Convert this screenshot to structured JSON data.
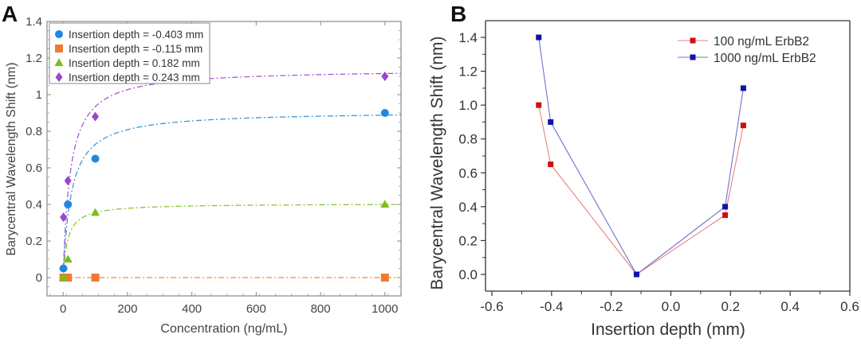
{
  "chart_data": [
    {
      "panel": "A",
      "type": "scatter",
      "title": "",
      "xlabel": "Concentration (ng/mL)",
      "ylabel": "Barycentral Wavelength Shift (nm)",
      "xlim": [
        -50,
        1050
      ],
      "ylim": [
        -0.1,
        1.4
      ],
      "xticks": [
        0,
        200,
        400,
        600,
        800,
        1000
      ],
      "xtick_labels": [
        "0",
        "200",
        "400",
        "600",
        "800",
        "1000"
      ],
      "yticks": [
        0,
        0.2,
        0.4,
        0.6,
        0.8,
        1,
        1.2,
        1.4
      ],
      "ytick_labels": [
        "0",
        "0.2",
        "0.4",
        "0.6",
        "0.8",
        "1",
        "1.2",
        "1.4"
      ],
      "grid": false,
      "legend_position": "top-left",
      "fit_lines": "dash-dot",
      "series": [
        {
          "name": "Insertion depth = -0.403 mm",
          "marker": "circle",
          "color": "#1f88e0",
          "fit_color": "#3a9ad6",
          "x": [
            1,
            10,
            100,
            1000
          ],
          "y": [
            0.05,
            0.4,
            0.65,
            0.9
          ],
          "fit_bmax": 0.91,
          "fit_kd": 25
        },
        {
          "name": "Insertion depth = -0.115 mm",
          "marker": "square",
          "color": "#f07a30",
          "fit_color": "#f0894a",
          "x": [
            1,
            10,
            100,
            1000
          ],
          "y": [
            0,
            0,
            0,
            0
          ],
          "fit_bmax": 0,
          "fit_kd": 1
        },
        {
          "name": "Insertion depth = 0.182 mm",
          "marker": "triangle",
          "color": "#7cbd1e",
          "fit_color": "#8cc43a",
          "x": [
            1,
            10,
            100,
            1000
          ],
          "y": [
            0,
            0.1,
            0.355,
            0.4
          ],
          "fit_bmax": 0.405,
          "fit_kd": 14
        },
        {
          "name": "Insertion depth = 0.243 mm",
          "marker": "diamond",
          "color": "#9b45d0",
          "fit_color": "#a55ad6",
          "x": [
            1,
            10,
            100,
            1000
          ],
          "y": [
            0.33,
            0.53,
            0.88,
            1.1
          ],
          "fit_bmax": 1.14,
          "fit_kd": 22
        }
      ]
    },
    {
      "panel": "B",
      "type": "line",
      "title": "",
      "xlabel": "Insertion depth (mm)",
      "ylabel": "Barycentral Wavelength Shift (nm)",
      "xlim": [
        -0.62,
        0.6
      ],
      "ylim": [
        -0.1,
        1.5
      ],
      "xticks": [
        -0.6,
        -0.4,
        -0.2,
        0.0,
        0.2,
        0.4,
        0.6
      ],
      "xtick_labels": [
        "-0.6",
        "-0.4",
        "-0.2",
        "0.0",
        "0.2",
        "0.4",
        "0.6"
      ],
      "yticks": [
        0.0,
        0.2,
        0.4,
        0.6,
        0.8,
        1.0,
        1.2,
        1.4
      ],
      "ytick_labels": [
        "0.0",
        "0.2",
        "0.4",
        "0.6",
        "0.8",
        "1.0",
        "1.2",
        "1.4"
      ],
      "grid": false,
      "legend_position": "top-right",
      "series": [
        {
          "name": "100 ng/mL ErbB2",
          "marker": "square",
          "color": "#cc1111",
          "line_color": "#e88080",
          "x": [
            -0.443,
            -0.403,
            -0.115,
            0.182,
            0.243
          ],
          "y": [
            1.0,
            0.65,
            0.0,
            0.35,
            0.88
          ]
        },
        {
          "name": "1000 ng/mL ErbB2",
          "marker": "square",
          "color": "#1111aa",
          "line_color": "#7070d0",
          "x": [
            -0.443,
            -0.403,
            -0.115,
            0.182,
            0.243
          ],
          "y": [
            1.4,
            0.9,
            0.0,
            0.4,
            1.1
          ]
        }
      ]
    }
  ],
  "panels": {
    "a_letter": "A",
    "b_letter": "B"
  }
}
